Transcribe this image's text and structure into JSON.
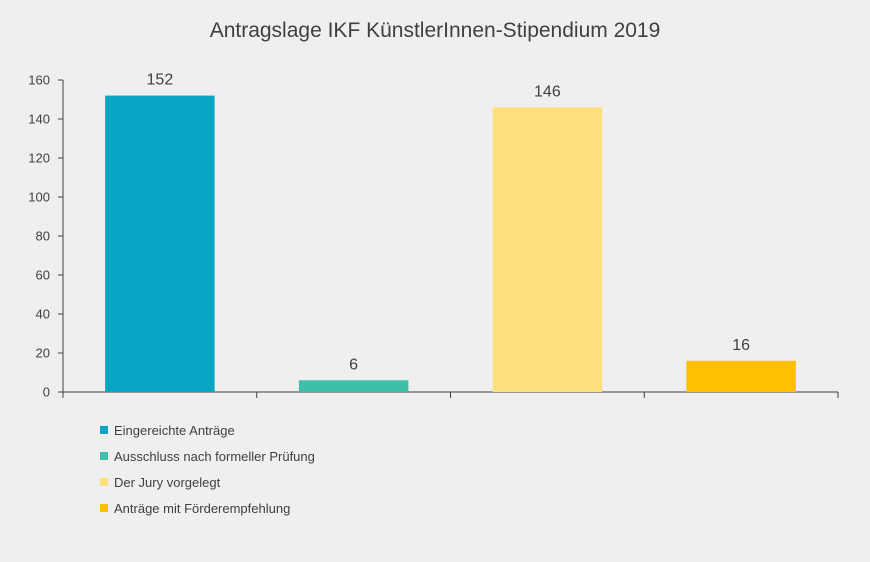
{
  "chart_data": {
    "type": "bar",
    "title": "Antragslage IKF KünstlerInnen-Stipendium 2019",
    "xlabel": "",
    "ylabel": "",
    "ylim": [
      0,
      160
    ],
    "yticks": [
      0,
      20,
      40,
      60,
      80,
      100,
      120,
      140,
      160
    ],
    "grid": false,
    "legend_position": "bottom-left",
    "categories": [
      "Eingereichte Anträge",
      "Ausschluss nach formeller Prüfung",
      "Der Jury vorgelegt",
      "Anträge mit Förderempfehlung"
    ],
    "values": [
      152,
      6,
      146,
      16
    ],
    "colors": [
      "#0aa4c5",
      "#3dbfaa",
      "#fedf7e",
      "#fec000"
    ],
    "data_labels": [
      "152",
      "6",
      "146",
      "16"
    ]
  }
}
